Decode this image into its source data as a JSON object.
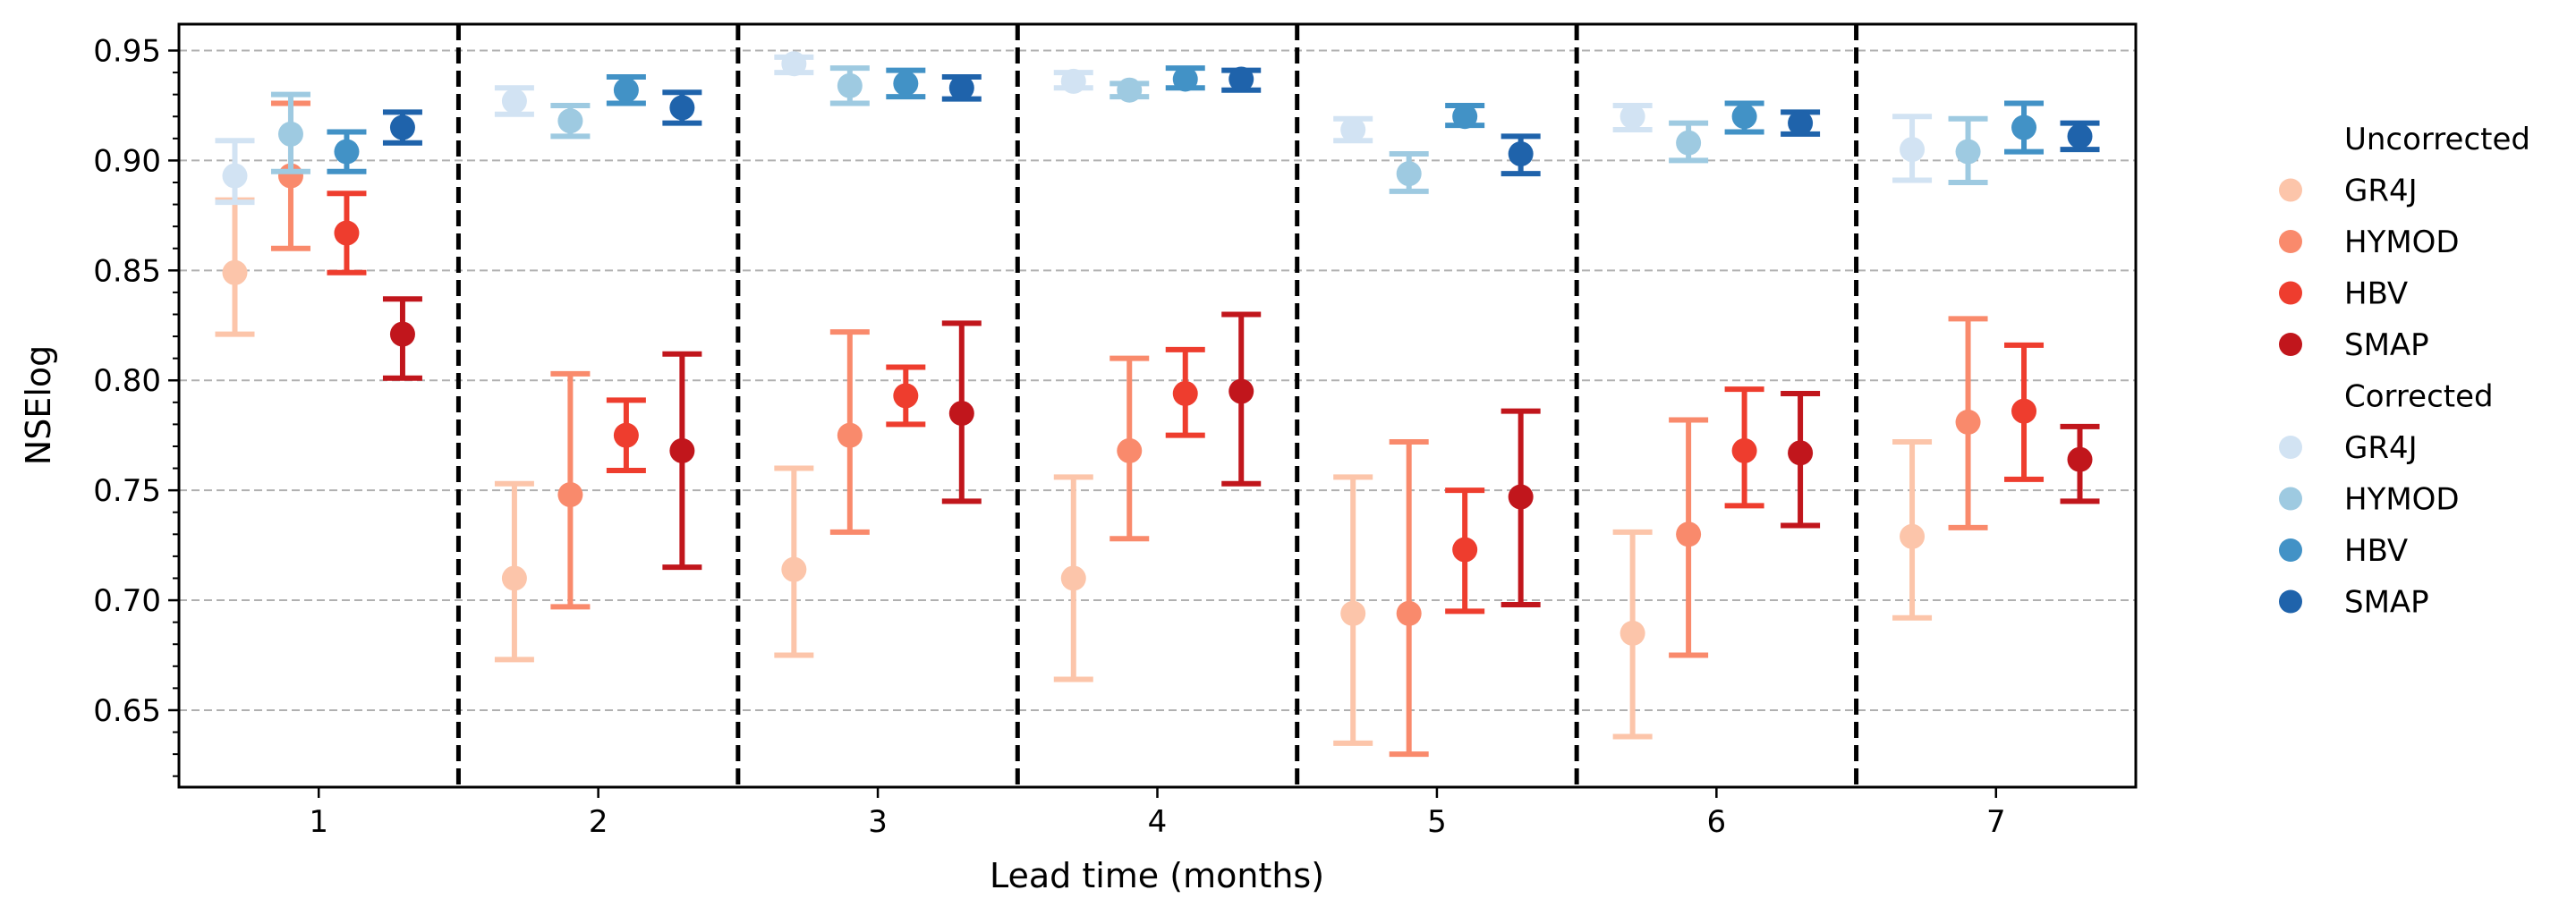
{
  "chart_data": {
    "type": "scatter",
    "subtype": "errorbar",
    "title": "",
    "xlabel": "Lead time (months)",
    "ylabel": "NSElog",
    "ylim": [
      0.615,
      0.962
    ],
    "y_ticks": [
      "0.65",
      "0.70",
      "0.75",
      "0.80",
      "0.85",
      "0.90",
      "0.95"
    ],
    "grid": "horizontal dashed",
    "categories": [
      "1",
      "2",
      "3",
      "4",
      "5",
      "6",
      "7"
    ],
    "legend": {
      "placement": "right",
      "groups": [
        {
          "title": "Uncorrected",
          "entries": [
            "GR4J",
            "HYMOD",
            "HBV",
            "SMAP"
          ]
        },
        {
          "title": "Corrected",
          "entries": [
            "GR4J",
            "HYMOD",
            "HBV",
            "SMAP"
          ]
        }
      ]
    },
    "series": [
      {
        "name": "GR4J",
        "group": "Uncorrected",
        "color": "#fcc5aa",
        "values": [
          0.849,
          0.71,
          0.714,
          0.71,
          0.694,
          0.685,
          0.729
        ],
        "lower": [
          0.821,
          0.673,
          0.675,
          0.664,
          0.635,
          0.638,
          0.692
        ],
        "upper": [
          0.882,
          0.753,
          0.76,
          0.756,
          0.756,
          0.731,
          0.772
        ]
      },
      {
        "name": "HYMOD",
        "group": "Uncorrected",
        "color": "#f98a6c",
        "values": [
          0.893,
          0.748,
          0.775,
          0.768,
          0.694,
          0.73,
          0.781
        ],
        "lower": [
          0.86,
          0.697,
          0.731,
          0.728,
          0.63,
          0.675,
          0.733
        ],
        "upper": [
          0.926,
          0.803,
          0.822,
          0.81,
          0.772,
          0.782,
          0.828
        ]
      },
      {
        "name": "HBV",
        "group": "Uncorrected",
        "color": "#ee3d2e",
        "values": [
          0.867,
          0.775,
          0.793,
          0.794,
          0.723,
          0.768,
          0.786
        ],
        "lower": [
          0.849,
          0.759,
          0.78,
          0.775,
          0.695,
          0.743,
          0.755
        ],
        "upper": [
          0.885,
          0.791,
          0.806,
          0.814,
          0.75,
          0.796,
          0.816
        ]
      },
      {
        "name": "SMAP",
        "group": "Uncorrected",
        "color": "#c1161c",
        "values": [
          0.821,
          0.768,
          0.785,
          0.795,
          0.747,
          0.767,
          0.764
        ],
        "lower": [
          0.801,
          0.715,
          0.745,
          0.753,
          0.698,
          0.734,
          0.745
        ],
        "upper": [
          0.837,
          0.812,
          0.826,
          0.83,
          0.786,
          0.794,
          0.779
        ]
      },
      {
        "name": "GR4J",
        "group": "Corrected",
        "color": "#d2e3f3",
        "values": [
          0.893,
          0.927,
          0.944,
          0.936,
          0.914,
          0.92,
          0.905
        ],
        "lower": [
          0.881,
          0.921,
          0.94,
          0.933,
          0.909,
          0.914,
          0.891
        ],
        "upper": [
          0.909,
          0.933,
          0.947,
          0.94,
          0.919,
          0.925,
          0.92
        ]
      },
      {
        "name": "HYMOD",
        "group": "Corrected",
        "color": "#9ecae1",
        "values": [
          0.912,
          0.918,
          0.934,
          0.932,
          0.894,
          0.908,
          0.904
        ],
        "lower": [
          0.895,
          0.911,
          0.926,
          0.929,
          0.886,
          0.9,
          0.89
        ],
        "upper": [
          0.93,
          0.925,
          0.942,
          0.935,
          0.903,
          0.917,
          0.919
        ]
      },
      {
        "name": "HBV",
        "group": "Corrected",
        "color": "#4292c6",
        "values": [
          0.904,
          0.932,
          0.935,
          0.937,
          0.92,
          0.92,
          0.915
        ],
        "lower": [
          0.895,
          0.926,
          0.929,
          0.933,
          0.916,
          0.913,
          0.904
        ],
        "upper": [
          0.913,
          0.938,
          0.941,
          0.942,
          0.925,
          0.926,
          0.926
        ]
      },
      {
        "name": "SMAP",
        "group": "Corrected",
        "color": "#1f63ab",
        "values": [
          0.915,
          0.924,
          0.933,
          0.937,
          0.903,
          0.917,
          0.911
        ],
        "lower": [
          0.908,
          0.917,
          0.928,
          0.932,
          0.894,
          0.912,
          0.905
        ],
        "upper": [
          0.922,
          0.931,
          0.938,
          0.941,
          0.911,
          0.922,
          0.917
        ]
      }
    ]
  }
}
